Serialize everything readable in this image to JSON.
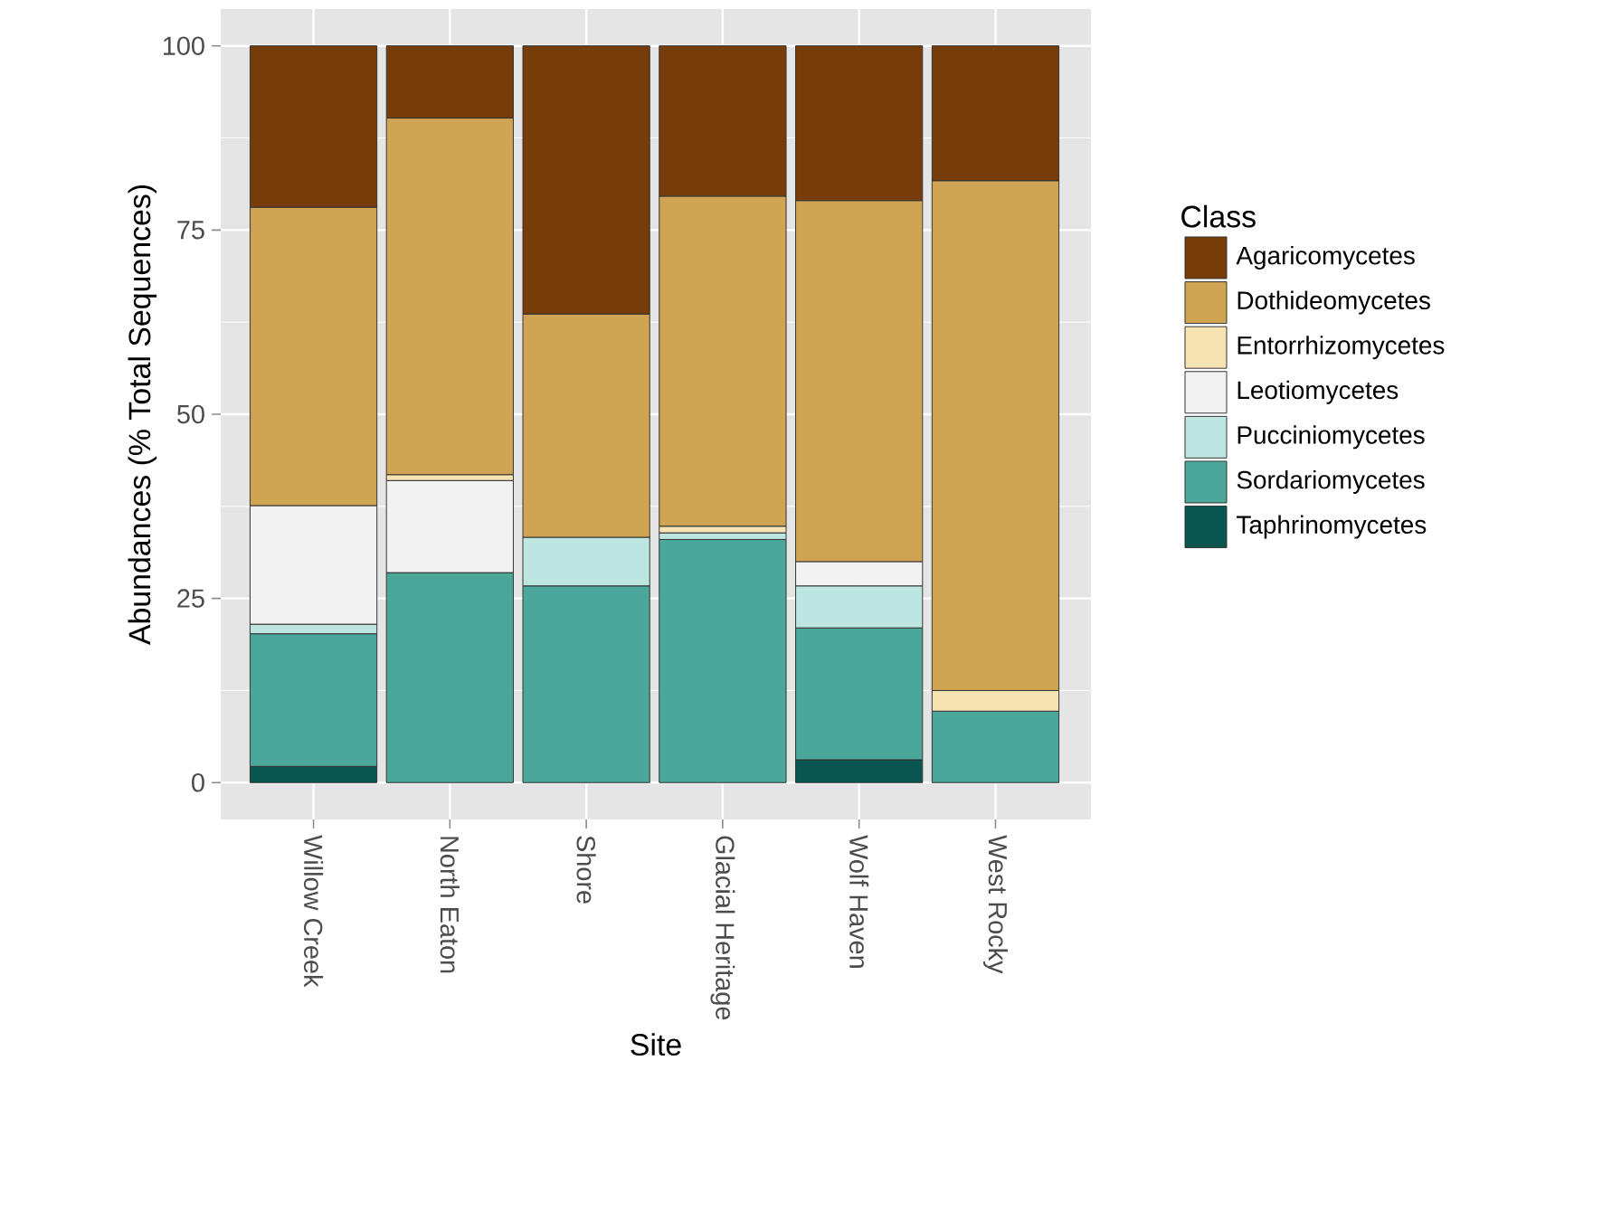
{
  "chart_data": {
    "type": "bar",
    "stacked": true,
    "xlabel": "Site",
    "ylabel": "Abundances (% Total Sequences)",
    "legend_title": "Class",
    "legend": "right",
    "grid": true,
    "categories": [
      "Willow Creek",
      "North Eaton",
      "Shore",
      "Glacial Heritage",
      "Wolf Haven",
      "West Rocky"
    ],
    "ylim": [
      -5,
      105
    ],
    "yticks": [
      0,
      25,
      50,
      75,
      100
    ],
    "series": [
      {
        "name": "Taphrinomycetes",
        "color": "#08564f",
        "values": [
          2.2,
          0,
          0,
          0,
          3.1,
          0
        ]
      },
      {
        "name": "Sordariomycetes",
        "color": "#4aa79a",
        "values": [
          18.0,
          28.5,
          26.7,
          33.0,
          17.9,
          9.7
        ]
      },
      {
        "name": "Pucciniomycetes",
        "color": "#bee6e0",
        "values": [
          1.3,
          0,
          6.6,
          0.9,
          5.7,
          0
        ]
      },
      {
        "name": "Leotiomycetes",
        "color": "#f2f2f2",
        "values": [
          16.1,
          12.5,
          0,
          0,
          3.3,
          0
        ]
      },
      {
        "name": "Entorrhizomycetes",
        "color": "#f5e3b3",
        "values": [
          0,
          0.8,
          0,
          0.9,
          0,
          2.8
        ]
      },
      {
        "name": "Dothideomycetes",
        "color": "#cfa553",
        "values": [
          40.5,
          48.4,
          30.3,
          44.8,
          49.0,
          69.2
        ]
      },
      {
        "name": "Agaricomycetes",
        "color": "#763c0a",
        "values": [
          21.9,
          9.8,
          36.4,
          20.4,
          21.0,
          18.3
        ]
      }
    ]
  }
}
